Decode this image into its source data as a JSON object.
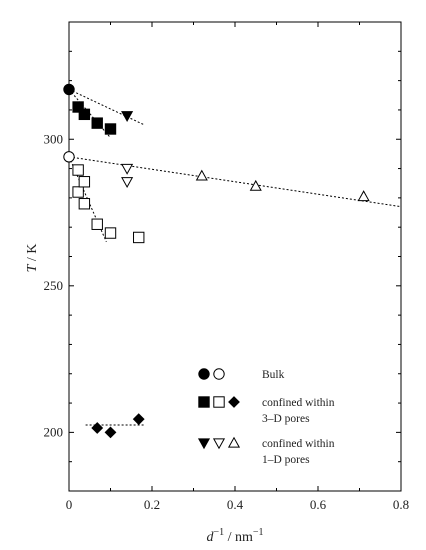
{
  "chart_data": {
    "type": "scatter",
    "xlabel": {
      "base": "d",
      "exp": "−1",
      "unit": " / nm",
      "unit_exp": "−1"
    },
    "ylabel": {
      "italic": "T",
      "unit": " / K"
    },
    "xlim": [
      0,
      0.8
    ],
    "ylim": [
      180,
      340
    ],
    "x_ticks": [
      "0",
      "0.2",
      "0.4",
      "0.6",
      "0.8"
    ],
    "y_ticks": [
      "200",
      "250",
      "300"
    ],
    "x_tick_values": [
      0,
      0.2,
      0.4,
      0.6,
      0.8
    ],
    "y_tick_values": [
      200,
      250,
      300
    ],
    "grid": false,
    "legend_placement": "bottom-right",
    "legend": [
      {
        "markers": [
          "circle-filled",
          "circle-open"
        ],
        "lines": [
          "Bulk"
        ]
      },
      {
        "markers": [
          "square-filled",
          "square-open",
          "diamond-filled"
        ],
        "lines": [
          "confined within",
          "3–D pores"
        ]
      },
      {
        "markers": [
          "tri-down-filled",
          "tri-down-open",
          "tri-up-open"
        ],
        "lines": [
          "confined within",
          "1–D pores"
        ]
      }
    ],
    "series": [
      {
        "marker": "circle-filled",
        "points": [
          [
            0,
            317
          ]
        ]
      },
      {
        "marker": "circle-open",
        "points": [
          [
            0,
            294
          ]
        ]
      },
      {
        "marker": "square-filled",
        "points": [
          [
            0.022,
            311
          ],
          [
            0.037,
            308.5
          ],
          [
            0.068,
            305.5
          ],
          [
            0.1,
            303.5
          ]
        ]
      },
      {
        "marker": "square-open",
        "points": [
          [
            0.022,
            289.5
          ],
          [
            0.022,
            282
          ],
          [
            0.037,
            285.5
          ],
          [
            0.037,
            278
          ],
          [
            0.068,
            271
          ],
          [
            0.1,
            268
          ],
          [
            0.168,
            266.5
          ]
        ]
      },
      {
        "marker": "diamond-filled",
        "points": [
          [
            0.068,
            201.5
          ],
          [
            0.1,
            200
          ],
          [
            0.168,
            204.5
          ]
        ]
      },
      {
        "marker": "tri-down-filled",
        "points": [
          [
            0.14,
            308
          ]
        ]
      },
      {
        "marker": "tri-down-open",
        "points": [
          [
            0.14,
            290
          ],
          [
            0.14,
            285.5
          ]
        ]
      },
      {
        "marker": "tri-up-open",
        "points": [
          [
            0.32,
            287.5
          ],
          [
            0.45,
            284
          ],
          [
            0.71,
            280.5
          ]
        ]
      }
    ],
    "fit_lines": [
      {
        "points": [
          [
            0,
            317
          ],
          [
            0.18,
            305
          ]
        ]
      },
      {
        "points": [
          [
            0,
            317
          ],
          [
            0.1,
            300.5
          ]
        ]
      },
      {
        "points": [
          [
            0,
            294
          ],
          [
            0.8,
            277
          ]
        ]
      },
      {
        "points": [
          [
            0,
            294
          ],
          [
            0.09,
            265
          ]
        ]
      },
      {
        "points": [
          [
            0.04,
            202.5
          ],
          [
            0.18,
            202.5
          ]
        ]
      }
    ]
  }
}
